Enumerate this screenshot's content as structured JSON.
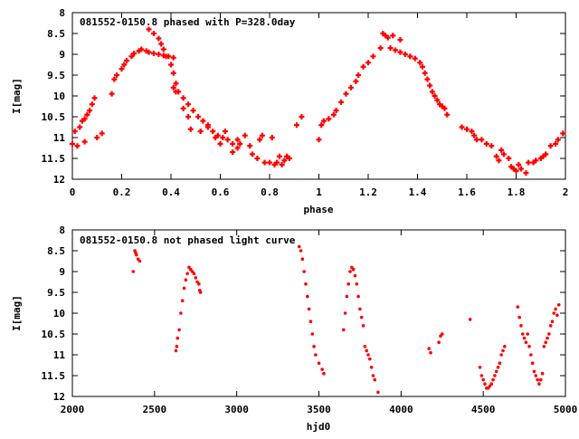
{
  "chart_data": [
    {
      "type": "scatter",
      "title": "081552-0150.8 phased with P=328.0day",
      "xlabel": "phase",
      "ylabel": "I[mag]",
      "xlim": [
        0,
        2
      ],
      "ylim": [
        8,
        12
      ],
      "y_inverted": true,
      "xticks": [
        0,
        0.2,
        0.4,
        0.6,
        0.8,
        1,
        1.2,
        1.4,
        1.6,
        1.8,
        2
      ],
      "xtick_labels": [
        "0",
        "0.2",
        "0.4",
        "0.6",
        "0.8",
        "1",
        "1.2",
        "1.4",
        "1.6",
        "1.8",
        "2"
      ],
      "yticks": [
        8,
        8.5,
        9,
        9.5,
        10,
        10.5,
        11,
        11.5,
        12
      ],
      "ytick_labels": [
        "8",
        "8.5",
        "9",
        "9.5",
        "10",
        "10.5",
        "11",
        "11.5",
        "12"
      ],
      "marker": "cross",
      "color": "#ff0000",
      "grid": false,
      "series": [
        {
          "points": [
            [
              0.0,
              11.15
            ],
            [
              0.01,
              10.85
            ],
            [
              0.02,
              11.2
            ],
            [
              0.03,
              10.75
            ],
            [
              0.04,
              10.6
            ],
            [
              0.05,
              10.55
            ],
            [
              0.05,
              11.1
            ],
            [
              0.06,
              10.45
            ],
            [
              0.07,
              10.35
            ],
            [
              0.08,
              10.2
            ],
            [
              0.09,
              10.05
            ],
            [
              0.1,
              11.0
            ],
            [
              0.12,
              10.9
            ],
            [
              0.16,
              9.95
            ],
            [
              0.17,
              9.6
            ],
            [
              0.18,
              9.5
            ],
            [
              0.2,
              9.35
            ],
            [
              0.21,
              9.25
            ],
            [
              0.22,
              9.15
            ],
            [
              0.24,
              9.05
            ],
            [
              0.25,
              8.98
            ],
            [
              0.27,
              8.92
            ],
            [
              0.28,
              8.88
            ],
            [
              0.3,
              8.92
            ],
            [
              0.31,
              8.95
            ],
            [
              0.33,
              8.98
            ],
            [
              0.35,
              9.0
            ],
            [
              0.37,
              9.03
            ],
            [
              0.39,
              9.05
            ],
            [
              0.41,
              9.08
            ],
            [
              0.31,
              8.4
            ],
            [
              0.33,
              8.5
            ],
            [
              0.35,
              8.62
            ],
            [
              0.36,
              8.75
            ],
            [
              0.37,
              8.88
            ],
            [
              0.38,
              9.05
            ],
            [
              0.4,
              9.25
            ],
            [
              0.41,
              9.45
            ],
            [
              0.42,
              9.7
            ],
            [
              0.43,
              9.9
            ],
            [
              0.45,
              10.05
            ],
            [
              0.47,
              10.2
            ],
            [
              0.49,
              10.35
            ],
            [
              0.51,
              10.5
            ],
            [
              0.53,
              10.6
            ],
            [
              0.55,
              10.75
            ],
            [
              0.57,
              10.85
            ],
            [
              0.59,
              10.95
            ],
            [
              0.61,
              11.0
            ],
            [
              0.63,
              11.05
            ],
            [
              0.65,
              11.15
            ],
            [
              0.67,
              11.25
            ],
            [
              0.41,
              9.8
            ],
            [
              0.42,
              9.9
            ],
            [
              0.45,
              10.3
            ],
            [
              0.47,
              10.5
            ],
            [
              0.48,
              10.8
            ],
            [
              0.52,
              10.85
            ],
            [
              0.55,
              10.7
            ],
            [
              0.58,
              11.0
            ],
            [
              0.6,
              11.15
            ],
            [
              0.62,
              10.85
            ],
            [
              0.65,
              11.35
            ],
            [
              0.67,
              11.05
            ],
            [
              0.68,
              11.15
            ],
            [
              0.7,
              10.95
            ],
            [
              0.72,
              11.2
            ],
            [
              0.73,
              11.4
            ],
            [
              0.75,
              11.5
            ],
            [
              0.76,
              11.05
            ],
            [
              0.77,
              10.95
            ],
            [
              0.78,
              11.6
            ],
            [
              0.8,
              11.6
            ],
            [
              0.81,
              11.0
            ],
            [
              0.82,
              11.65
            ],
            [
              0.83,
              11.6
            ],
            [
              0.84,
              11.45
            ],
            [
              0.85,
              11.65
            ],
            [
              0.86,
              11.55
            ],
            [
              0.87,
              11.45
            ],
            [
              0.88,
              11.5
            ],
            [
              0.91,
              10.7
            ],
            [
              0.93,
              10.5
            ],
            [
              1.0,
              11.05
            ],
            [
              1.01,
              10.7
            ],
            [
              1.02,
              10.6
            ],
            [
              1.04,
              10.55
            ],
            [
              1.06,
              10.45
            ],
            [
              1.07,
              10.35
            ],
            [
              1.09,
              10.15
            ],
            [
              1.11,
              9.95
            ],
            [
              1.13,
              9.8
            ],
            [
              1.15,
              9.65
            ],
            [
              1.16,
              9.5
            ],
            [
              1.18,
              9.3
            ],
            [
              1.2,
              9.2
            ],
            [
              1.22,
              9.05
            ],
            [
              1.25,
              8.85
            ],
            [
              1.26,
              8.5
            ],
            [
              1.27,
              8.55
            ],
            [
              1.28,
              8.6
            ],
            [
              1.3,
              8.55
            ],
            [
              1.33,
              8.65
            ],
            [
              1.29,
              8.85
            ],
            [
              1.31,
              8.9
            ],
            [
              1.33,
              8.95
            ],
            [
              1.35,
              9.0
            ],
            [
              1.37,
              9.05
            ],
            [
              1.39,
              9.1
            ],
            [
              1.41,
              9.2
            ],
            [
              1.42,
              9.3
            ],
            [
              1.43,
              9.45
            ],
            [
              1.44,
              9.6
            ],
            [
              1.45,
              9.75
            ],
            [
              1.46,
              9.9
            ],
            [
              1.47,
              10.0
            ],
            [
              1.48,
              10.1
            ],
            [
              1.49,
              10.2
            ],
            [
              1.5,
              10.25
            ],
            [
              1.51,
              10.3
            ],
            [
              1.52,
              10.45
            ],
            [
              1.58,
              10.75
            ],
            [
              1.6,
              10.8
            ],
            [
              1.62,
              10.85
            ],
            [
              1.63,
              10.95
            ],
            [
              1.64,
              11.05
            ],
            [
              1.66,
              11.05
            ],
            [
              1.68,
              11.15
            ],
            [
              1.7,
              11.2
            ],
            [
              1.72,
              11.45
            ],
            [
              1.73,
              11.55
            ],
            [
              1.74,
              11.3
            ],
            [
              1.75,
              11.4
            ],
            [
              1.77,
              11.5
            ],
            [
              1.78,
              11.7
            ],
            [
              1.79,
              11.75
            ],
            [
              1.8,
              11.8
            ],
            [
              1.81,
              11.65
            ],
            [
              1.82,
              11.75
            ],
            [
              1.84,
              11.85
            ],
            [
              1.85,
              11.6
            ],
            [
              1.87,
              11.6
            ],
            [
              1.88,
              11.55
            ],
            [
              1.9,
              11.5
            ],
            [
              1.91,
              11.45
            ],
            [
              1.92,
              11.4
            ],
            [
              1.94,
              11.2
            ],
            [
              1.96,
              11.15
            ],
            [
              1.97,
              11.05
            ],
            [
              1.99,
              10.9
            ]
          ]
        }
      ]
    },
    {
      "type": "scatter",
      "title": "081552-0150.8 not phased light curve",
      "xlabel": "hjd0",
      "ylabel": "I[mag]",
      "xlim": [
        2000,
        5000
      ],
      "ylim": [
        8,
        12
      ],
      "y_inverted": true,
      "xticks": [
        2000,
        2500,
        3000,
        3500,
        4000,
        4500,
        5000
      ],
      "xtick_labels": [
        "2000",
        "2500",
        "3000",
        "3500",
        "4000",
        "4500",
        "5000"
      ],
      "yticks": [
        8,
        8.5,
        9,
        9.5,
        10,
        10.5,
        11,
        11.5,
        12
      ],
      "ytick_labels": [
        "8",
        "8.5",
        "9",
        "9.5",
        "10",
        "10.5",
        "11",
        "11.5",
        "12"
      ],
      "marker": "dot",
      "color": "#ff0000",
      "grid": false,
      "series": [
        {
          "points": [
            [
              2370,
              9.0
            ],
            [
              2380,
              8.5
            ],
            [
              2385,
              8.55
            ],
            [
              2390,
              8.6
            ],
            [
              2400,
              8.7
            ],
            [
              2410,
              8.75
            ],
            [
              2630,
              10.9
            ],
            [
              2635,
              10.8
            ],
            [
              2640,
              10.6
            ],
            [
              2650,
              10.4
            ],
            [
              2660,
              10.0
            ],
            [
              2670,
              9.7
            ],
            [
              2680,
              9.4
            ],
            [
              2690,
              9.2
            ],
            [
              2700,
              9.05
            ],
            [
              2710,
              8.9
            ],
            [
              2720,
              8.95
            ],
            [
              2730,
              9.0
            ],
            [
              2740,
              9.05
            ],
            [
              2750,
              9.15
            ],
            [
              2760,
              9.25
            ],
            [
              2770,
              9.3
            ],
            [
              2775,
              9.45
            ],
            [
              2780,
              9.5
            ],
            [
              3380,
              8.4
            ],
            [
              3390,
              8.5
            ],
            [
              3400,
              8.7
            ],
            [
              3410,
              9.0
            ],
            [
              3420,
              9.3
            ],
            [
              3430,
              9.6
            ],
            [
              3440,
              9.9
            ],
            [
              3450,
              10.2
            ],
            [
              3460,
              10.5
            ],
            [
              3470,
              10.8
            ],
            [
              3480,
              11.0
            ],
            [
              3500,
              11.2
            ],
            [
              3520,
              11.35
            ],
            [
              3530,
              11.45
            ],
            [
              3650,
              10.4
            ],
            [
              3660,
              10.0
            ],
            [
              3670,
              9.6
            ],
            [
              3680,
              9.3
            ],
            [
              3690,
              9.0
            ],
            [
              3700,
              8.9
            ],
            [
              3710,
              8.95
            ],
            [
              3720,
              9.1
            ],
            [
              3730,
              9.3
            ],
            [
              3740,
              9.6
            ],
            [
              3750,
              9.9
            ],
            [
              3760,
              10.1
            ],
            [
              3770,
              10.3
            ],
            [
              3780,
              10.8
            ],
            [
              3790,
              10.9
            ],
            [
              3800,
              11.0
            ],
            [
              3810,
              11.1
            ],
            [
              3820,
              11.3
            ],
            [
              3830,
              11.5
            ],
            [
              3840,
              11.6
            ],
            [
              3860,
              11.9
            ],
            [
              4170,
              10.85
            ],
            [
              4180,
              10.95
            ],
            [
              4230,
              10.7
            ],
            [
              4240,
              10.55
            ],
            [
              4250,
              10.5
            ],
            [
              4420,
              10.15
            ],
            [
              4480,
              11.3
            ],
            [
              4490,
              11.5
            ],
            [
              4500,
              11.6
            ],
            [
              4510,
              11.7
            ],
            [
              4520,
              11.8
            ],
            [
              4530,
              11.8
            ],
            [
              4540,
              11.75
            ],
            [
              4550,
              11.7
            ],
            [
              4560,
              11.6
            ],
            [
              4570,
              11.5
            ],
            [
              4580,
              11.4
            ],
            [
              4590,
              11.3
            ],
            [
              4600,
              11.2
            ],
            [
              4610,
              11.0
            ],
            [
              4620,
              10.9
            ],
            [
              4630,
              10.8
            ],
            [
              4710,
              9.85
            ],
            [
              4720,
              10.1
            ],
            [
              4730,
              10.3
            ],
            [
              4740,
              10.5
            ],
            [
              4750,
              10.6
            ],
            [
              4760,
              10.7
            ],
            [
              4770,
              10.5
            ],
            [
              4780,
              10.8
            ],
            [
              4790,
              11.0
            ],
            [
              4800,
              11.2
            ],
            [
              4810,
              11.4
            ],
            [
              4820,
              11.5
            ],
            [
              4830,
              11.6
            ],
            [
              4840,
              11.7
            ],
            [
              4850,
              11.6
            ],
            [
              4860,
              11.45
            ],
            [
              4870,
              10.8
            ],
            [
              4880,
              10.7
            ],
            [
              4890,
              10.6
            ],
            [
              4900,
              10.5
            ],
            [
              4910,
              10.3
            ],
            [
              4920,
              10.2
            ],
            [
              4930,
              10.0
            ],
            [
              4940,
              9.9
            ],
            [
              4950,
              10.05
            ],
            [
              4960,
              9.8
            ]
          ]
        }
      ]
    }
  ]
}
